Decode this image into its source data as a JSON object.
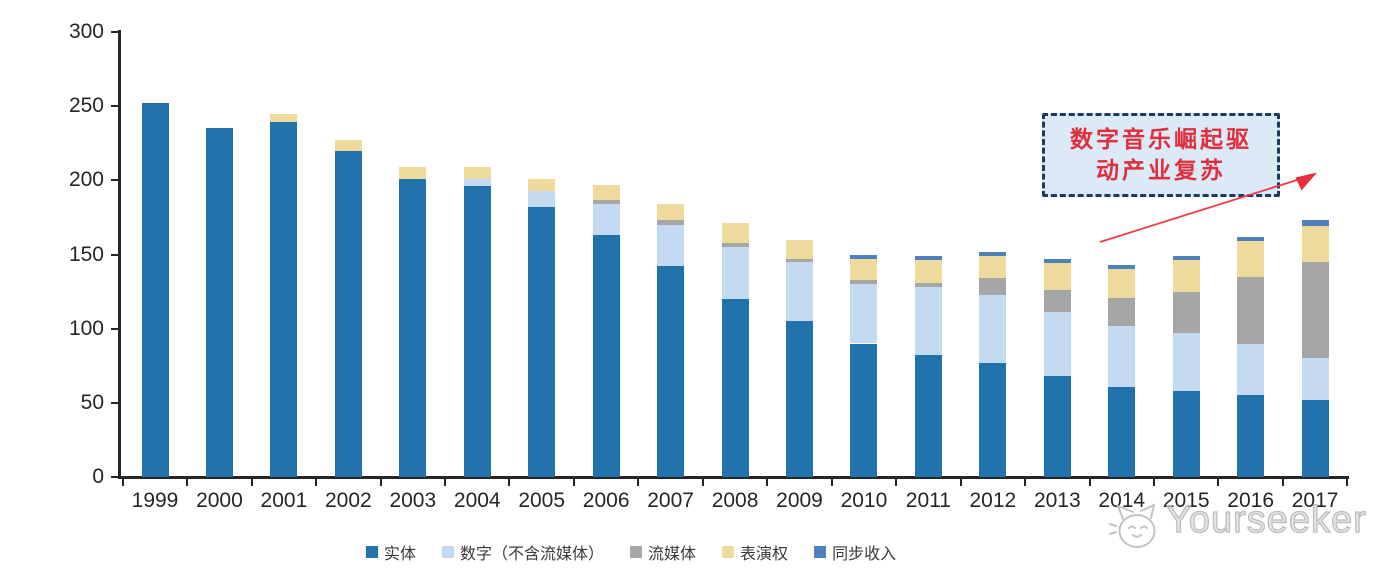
{
  "watermark": {
    "text": "Yourseeker"
  },
  "annotation": {
    "line1": "数字音乐崛起驱",
    "line2": "动产业复苏",
    "text_color": "#DF2F3D",
    "box_fill": "#DCE9F7",
    "border_color": "#1F3864",
    "arrow_color": "#EF3B48"
  },
  "colors": {
    "axis": "#262626",
    "tick_label": "#262626",
    "legend_label": "#3A3A3A",
    "watermark": "#BDBDBD"
  },
  "chart_data": {
    "type": "bar",
    "stacked": true,
    "title": "",
    "xlabel": "",
    "ylabel": "",
    "ylim": [
      0,
      300
    ],
    "yticks": [
      0,
      50,
      100,
      150,
      200,
      250,
      300
    ],
    "grid": false,
    "legend_position": "bottom",
    "categories": [
      "1999",
      "2000",
      "2001",
      "2002",
      "2003",
      "2004",
      "2005",
      "2006",
      "2007",
      "2008",
      "2009",
      "2010",
      "2011",
      "2012",
      "2013",
      "2014",
      "2015",
      "2016",
      "2017"
    ],
    "series": [
      {
        "name": "实体",
        "color": "#2272AC",
        "values": [
          252,
          235,
          239,
          220,
          201,
          196,
          182,
          163,
          142,
          120,
          105,
          90,
          82,
          77,
          68,
          61,
          58,
          55,
          52
        ]
      },
      {
        "name": "数字（不含流媒体）",
        "color": "#C3DAF0",
        "values": [
          0,
          0,
          0,
          0,
          0,
          5,
          11,
          21,
          28,
          35,
          40,
          40,
          46,
          46,
          43,
          41,
          39,
          35,
          28
        ]
      },
      {
        "name": "流媒体",
        "color": "#A6A6A6",
        "values": [
          0,
          0,
          0,
          0,
          0,
          0,
          0,
          3,
          3,
          3,
          2,
          3,
          3,
          11,
          15,
          19,
          28,
          45,
          65
        ]
      },
      {
        "name": "表演权",
        "color": "#EDDA9C",
        "values": [
          0,
          0,
          6,
          7,
          8,
          8,
          8,
          10,
          11,
          13,
          13,
          14,
          15,
          15,
          18,
          19,
          21,
          24,
          24
        ]
      },
      {
        "name": "同步收入",
        "color": "#4F81BD",
        "values": [
          0,
          0,
          0,
          0,
          0,
          0,
          0,
          0,
          0,
          0,
          0,
          3,
          3,
          3,
          3,
          3,
          3,
          3,
          4
        ]
      }
    ]
  }
}
